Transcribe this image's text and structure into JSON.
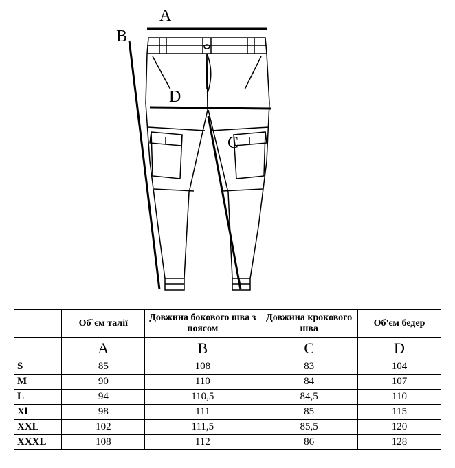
{
  "diagram": {
    "labels": {
      "A": "A",
      "B": "B",
      "C": "C",
      "D": "D"
    },
    "stroke": "#000000",
    "stroke_width": 1.5,
    "background": "#ffffff"
  },
  "table": {
    "headers": {
      "size": "",
      "A": "Об`єм талії",
      "B": "Довжина бокового шва з поясом",
      "C": "Довжина крокового шва",
      "D": "Об'єм бедер"
    },
    "letters": {
      "A": "A",
      "B": "B",
      "C": "C",
      "D": "D"
    },
    "rows": [
      {
        "size": "S",
        "A": "85",
        "B": "108",
        "C": "83",
        "D": "104"
      },
      {
        "size": "M",
        "A": "90",
        "B": "110",
        "C": "84",
        "D": "107"
      },
      {
        "size": "L",
        "A": "94",
        "B": "110,5",
        "C": "84,5",
        "D": "110"
      },
      {
        "size": "Xl",
        "A": "98",
        "B": "111",
        "C": "85",
        "D": "115"
      },
      {
        "size": "XXL",
        "A": "102",
        "B": "111,5",
        "C": "85,5",
        "D": "120"
      },
      {
        "size": "XXXL",
        "A": "108",
        "B": "112",
        "C": "86",
        "D": "128"
      }
    ]
  }
}
